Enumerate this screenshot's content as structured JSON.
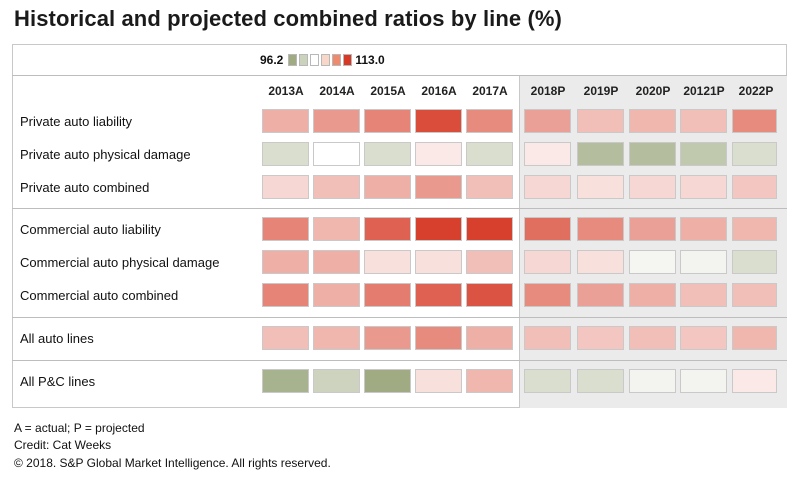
{
  "title": "Historical and projected combined ratios by line (%)",
  "legend": {
    "min_label": "96.2",
    "max_label": "113.0",
    "swatches": [
      "#a0ab84",
      "#ccd3bc",
      "#ffffff",
      "#f8d7c9",
      "#ee8a6d",
      "#d63a26"
    ]
  },
  "chart_data": {
    "type": "heatmap",
    "title": "Historical and projected combined ratios by line (%)",
    "columns": [
      "2013A",
      "2014A",
      "2015A",
      "2016A",
      "2017A",
      "2018P",
      "2019P",
      "2020P",
      "20121P",
      "2022P"
    ],
    "color_scale": {
      "min": 96.2,
      "max": 113.0,
      "min_color": "#a0ab84",
      "mid_color": "#ffffff",
      "max_color": "#d63a26"
    },
    "groups": [
      {
        "rows": [
          {
            "label": "Private auto liability",
            "values": [
              104.5,
              106.0,
              107.5,
              111.5,
              107.0,
              105.5,
              103.5,
              104.0,
              103.5,
              107.0
            ]
          },
          {
            "label": "Private auto physical damage",
            "values": [
              98.5,
              100.0,
              98.5,
              101.0,
              98.5,
              101.0,
              97.0,
              97.0,
              97.5,
              98.5
            ]
          },
          {
            "label": "Private auto combined",
            "values": [
              102.0,
              103.5,
              104.5,
              106.0,
              103.5,
              102.0,
              101.5,
              102.0,
              102.0,
              103.0
            ]
          }
        ]
      },
      {
        "rows": [
          {
            "label": "Commercial auto liability",
            "values": [
              107.5,
              104.0,
              110.0,
              112.5,
              112.5,
              109.0,
              107.0,
              105.5,
              104.5,
              104.0
            ]
          },
          {
            "label": "Commercial auto physical damage",
            "values": [
              104.5,
              104.5,
              101.5,
              101.5,
              103.5,
              102.0,
              101.5,
              99.6,
              99.5,
              98.5
            ]
          },
          {
            "label": "Commercial auto combined",
            "values": [
              107.5,
              104.5,
              108.0,
              110.0,
              111.0,
              107.0,
              105.5,
              104.5,
              103.5,
              103.5
            ]
          }
        ]
      },
      {
        "rows": [
          {
            "label": "All auto lines",
            "values": [
              103.5,
              104.0,
              106.0,
              107.0,
              104.5,
              103.5,
              103.0,
              103.5,
              103.0,
              104.0
            ]
          }
        ]
      },
      {
        "rows": [
          {
            "label": "All P&C lines",
            "values": [
              96.5,
              98.0,
              96.2,
              101.5,
              104.0,
              98.5,
              98.5,
              99.5,
              99.5,
              101.0
            ]
          }
        ]
      }
    ]
  },
  "footnotes": {
    "note": "A = actual; P = projected",
    "credit": "Credit: Cat Weeks",
    "copyright": "© 2018. S&P Global Market Intelligence. All rights reserved."
  }
}
